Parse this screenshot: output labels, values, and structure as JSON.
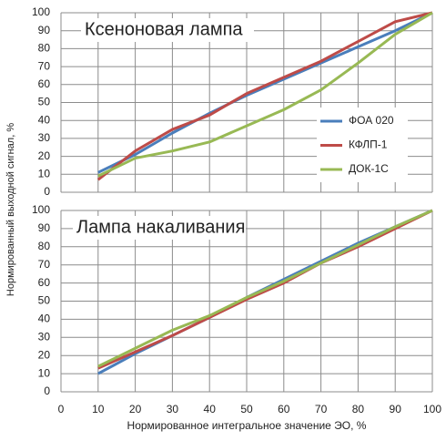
{
  "chart_data": [
    {
      "type": "line",
      "title": "Ксеноновая лампа",
      "ylabel": "Нормированный выходной сигнал, %",
      "x": [
        10,
        20,
        30,
        40,
        50,
        60,
        70,
        80,
        90,
        100
      ],
      "series": [
        {
          "name": "ФОА 020",
          "color": "#4a7ebb",
          "values": [
            11,
            21,
            33,
            44,
            54,
            63,
            72,
            81,
            90,
            100
          ]
        },
        {
          "name": "КФЛП-1",
          "color": "#be4b48",
          "values": [
            7,
            23,
            35,
            43,
            55,
            64,
            73,
            84,
            95,
            100
          ]
        },
        {
          "name": "ДОК-1С",
          "color": "#98b954",
          "values": [
            9,
            19,
            23,
            28,
            37,
            46,
            57,
            72,
            88,
            100
          ]
        }
      ],
      "xlim": [
        0,
        100
      ],
      "xticks": [
        0,
        10,
        20,
        30,
        40,
        50,
        60,
        70,
        80,
        90,
        100
      ],
      "ylim": [
        0,
        100
      ],
      "yticks": [
        0,
        10,
        20,
        30,
        40,
        50,
        60,
        70,
        80,
        90,
        100
      ],
      "grid": true,
      "xtick_labels": false,
      "legend": "right"
    },
    {
      "type": "line",
      "title": "Лампа накаливания",
      "xlabel": "Нормированное интегральное значение ЭО, %",
      "x": [
        10,
        20,
        30,
        40,
        50,
        60,
        70,
        80,
        90,
        100
      ],
      "series": [
        {
          "color": "#4a7ebb",
          "values": [
            10,
            21,
            31,
            41,
            52,
            62,
            72,
            82,
            91,
            100
          ]
        },
        {
          "color": "#be4b48",
          "values": [
            13,
            22,
            31,
            41,
            51,
            60,
            71,
            80,
            90,
            100
          ]
        },
        {
          "color": "#98b954",
          "values": [
            14,
            24,
            34,
            42,
            52,
            61,
            71,
            81,
            91,
            100
          ]
        }
      ],
      "xlim": [
        0,
        100
      ],
      "xticks": [
        0,
        10,
        20,
        30,
        40,
        50,
        60,
        70,
        80,
        90,
        100
      ],
      "ylim": [
        0,
        100
      ],
      "yticks": [
        0,
        10,
        20,
        30,
        40,
        50,
        60,
        70,
        80,
        90,
        100
      ],
      "grid": true,
      "xtick_labels": true
    }
  ]
}
